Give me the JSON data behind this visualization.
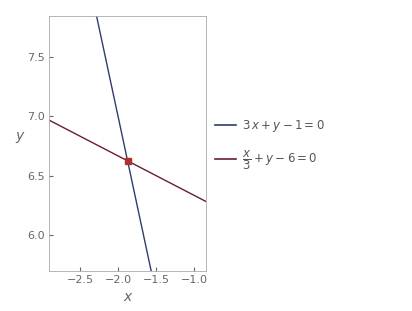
{
  "xlim": [
    -2.9,
    -0.85
  ],
  "ylim": [
    5.7,
    7.85
  ],
  "xlabel": "x",
  "ylabel": "y",
  "line1_color": "#2e3d6e",
  "line2_color": "#6b1a3a",
  "intersection_color": "#b03030",
  "intersection_x": -1.875,
  "intersection_y": 6.625,
  "bg_color": "#ffffff",
  "spine_color": "#aaaaaa",
  "tick_color": "#666666",
  "label_color": "#555555"
}
